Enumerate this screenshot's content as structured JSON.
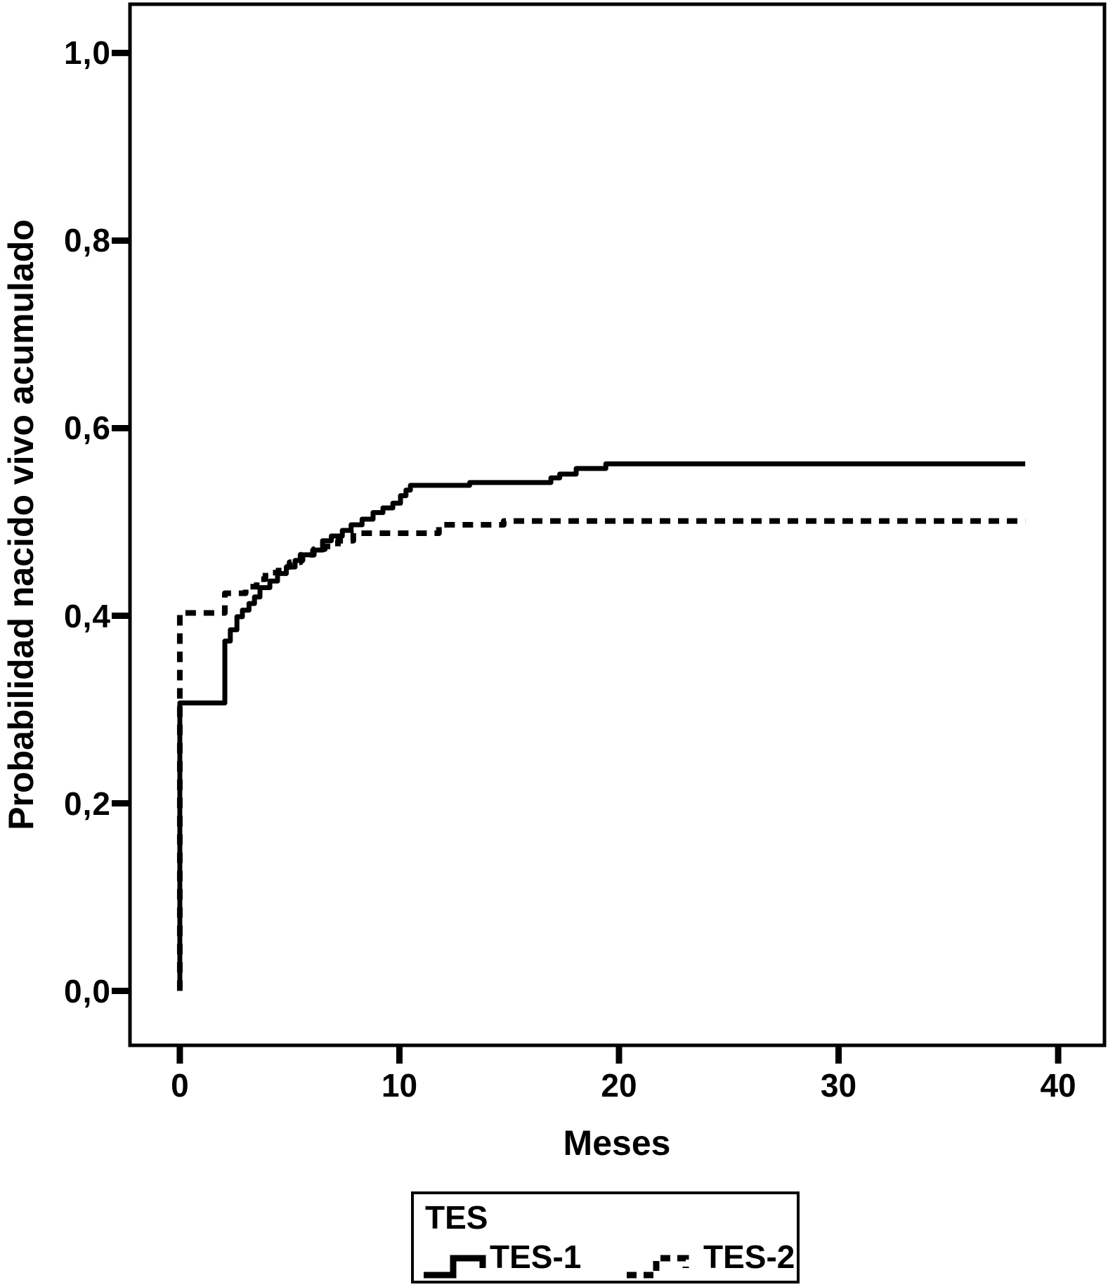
{
  "figure": {
    "background_color": "#ffffff",
    "ink_color": "#000000"
  },
  "chart_data": {
    "type": "line",
    "subtype": "kaplan-meier-step-survival",
    "title": "",
    "xlabel": "Meses",
    "ylabel": "Probabilidad nacido vivo acumulado",
    "grid": false,
    "xlim": [
      -2.27,
      42.11
    ],
    "ylim": [
      -0.058,
      1.052
    ],
    "x_ticks": {
      "values": [
        0,
        10,
        20,
        30,
        40
      ],
      "labels": [
        "0",
        "10",
        "20",
        "30",
        "40"
      ]
    },
    "y_ticks": {
      "values": [
        0.0,
        0.2,
        0.4,
        0.6,
        0.8,
        1.0
      ],
      "labels": [
        "0,0",
        "0,2",
        "0,4",
        "0,6",
        "0,8",
        "1,0"
      ]
    },
    "end_month": 38.5,
    "series": [
      {
        "name": "TES-1",
        "line": "solid",
        "start": [
          0,
          0
        ],
        "events": [
          [
            0,
            0.307
          ],
          [
            2.05,
            0.373
          ],
          [
            2.3,
            0.385
          ],
          [
            2.6,
            0.399
          ],
          [
            2.85,
            0.406
          ],
          [
            3.15,
            0.413
          ],
          [
            3.4,
            0.42
          ],
          [
            3.65,
            0.43
          ],
          [
            4.1,
            0.437
          ],
          [
            4.45,
            0.445
          ],
          [
            4.85,
            0.452
          ],
          [
            5.25,
            0.459
          ],
          [
            5.6,
            0.465
          ],
          [
            6.05,
            0.47
          ],
          [
            6.5,
            0.48
          ],
          [
            6.9,
            0.485
          ],
          [
            7.4,
            0.491
          ],
          [
            7.8,
            0.497
          ],
          [
            8.3,
            0.503
          ],
          [
            8.8,
            0.51
          ],
          [
            9.25,
            0.515
          ],
          [
            9.7,
            0.52
          ],
          [
            10.05,
            0.528
          ],
          [
            10.3,
            0.534
          ],
          [
            10.5,
            0.539
          ],
          [
            13.2,
            0.542
          ],
          [
            16.9,
            0.547
          ],
          [
            17.3,
            0.551
          ],
          [
            18.05,
            0.557
          ],
          [
            19.4,
            0.562
          ]
        ]
      },
      {
        "name": "TES-2",
        "line": "dashed",
        "start": [
          0,
          0
        ],
        "events": [
          [
            0,
            0.403
          ],
          [
            2.05,
            0.424
          ],
          [
            3.0,
            0.431
          ],
          [
            3.5,
            0.439
          ],
          [
            3.9,
            0.446
          ],
          [
            4.5,
            0.452
          ],
          [
            5.0,
            0.457
          ],
          [
            5.5,
            0.465
          ],
          [
            6.1,
            0.471
          ],
          [
            6.6,
            0.474
          ],
          [
            7.2,
            0.48
          ],
          [
            7.9,
            0.488
          ],
          [
            11.8,
            0.497
          ],
          [
            14.75,
            0.501
          ]
        ]
      }
    ],
    "legend": {
      "position": "bottom-center",
      "title": "TES",
      "entries": [
        {
          "label": "TES-1",
          "line": "solid"
        },
        {
          "label": "TES-2",
          "line": "dashed"
        }
      ]
    }
  }
}
